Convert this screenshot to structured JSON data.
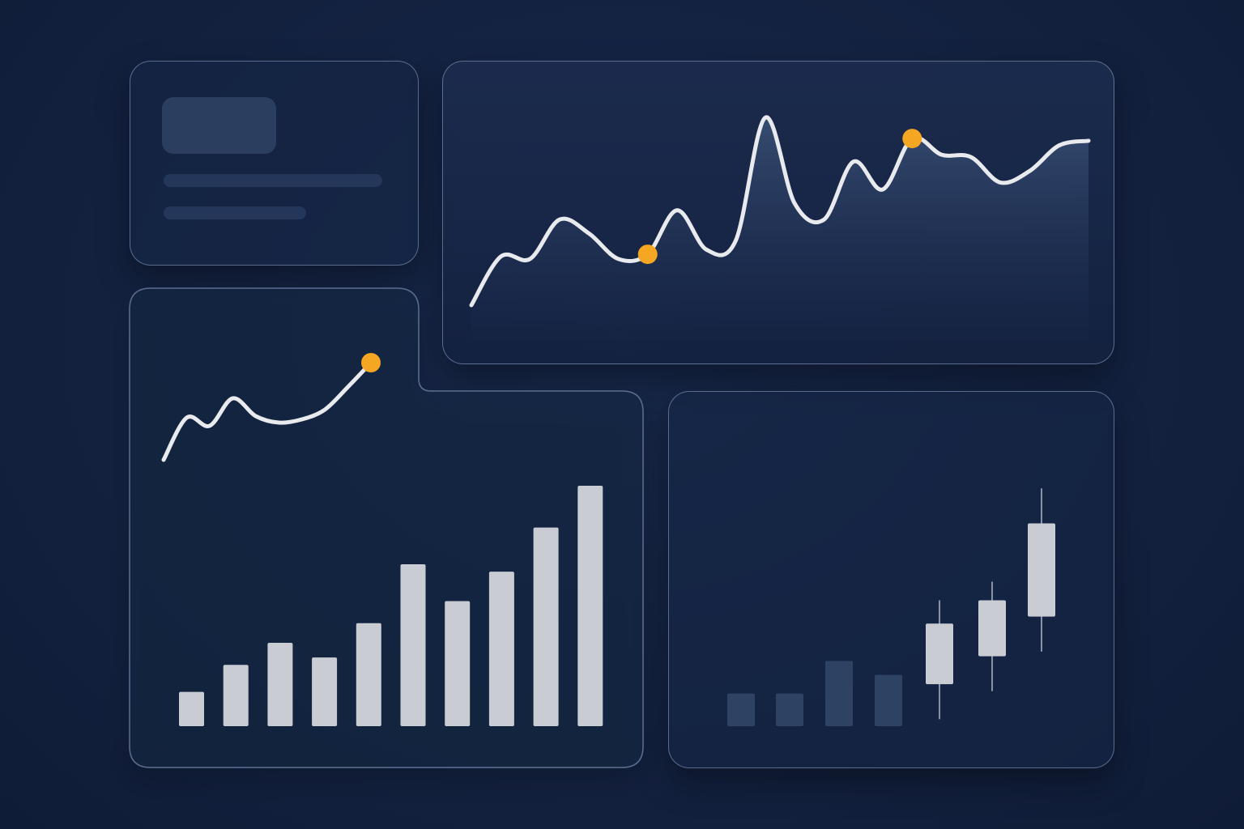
{
  "colors": {
    "background": "#13213f",
    "card_border": "#8fa3c8",
    "line": "#e8eaee",
    "bar": "#c9ccd3",
    "accent": "#f5a623",
    "muted_bar": "#2e4263"
  },
  "chart_data": [
    {
      "type": "area",
      "x": [
        0,
        1,
        2,
        3,
        4,
        5,
        6,
        7,
        8,
        9,
        10,
        11,
        12,
        13,
        14,
        15,
        16,
        17,
        18,
        19,
        20,
        21
      ],
      "y": [
        0,
        4.2,
        4.0,
        7.4,
        6.2,
        4.0,
        4.4,
        8.2,
        4.8,
        5.6,
        16.2,
        8.8,
        7.4,
        12.4,
        10.0,
        14.4,
        13.0,
        12.8,
        10.6,
        11.6,
        13.8,
        14.2
      ],
      "highlights": [
        {
          "x": 6,
          "y": 4.4
        },
        {
          "x": 15,
          "y": 14.4
        }
      ],
      "grid": false,
      "legend": "none"
    },
    {
      "type": "line",
      "x": [
        0,
        1,
        2,
        3,
        4,
        5,
        6,
        7,
        8,
        9
      ],
      "y": [
        0,
        5.2,
        4.2,
        7.6,
        5.4,
        4.6,
        5.0,
        6.2,
        9.0,
        12.0
      ],
      "highlights": [
        {
          "x": 9,
          "y": 12.0
        }
      ],
      "grid": false,
      "legend": "none"
    },
    {
      "type": "bar",
      "values": [
        14,
        25,
        34,
        28,
        42,
        66,
        51,
        63,
        81,
        98
      ],
      "ylim": [
        0,
        100
      ],
      "grid": false,
      "legend": "none"
    },
    {
      "type": "candlestick",
      "muted_values": [
        14,
        14,
        28,
        22
      ],
      "candles": [
        {
          "open": 18,
          "close": 44,
          "low": 3,
          "high": 54
        },
        {
          "open": 30,
          "close": 54,
          "low": 15,
          "high": 62
        },
        {
          "open": 47,
          "close": 87,
          "low": 32,
          "high": 102
        }
      ],
      "ylim": [
        0,
        110
      ],
      "grid": false,
      "legend": "none"
    }
  ]
}
